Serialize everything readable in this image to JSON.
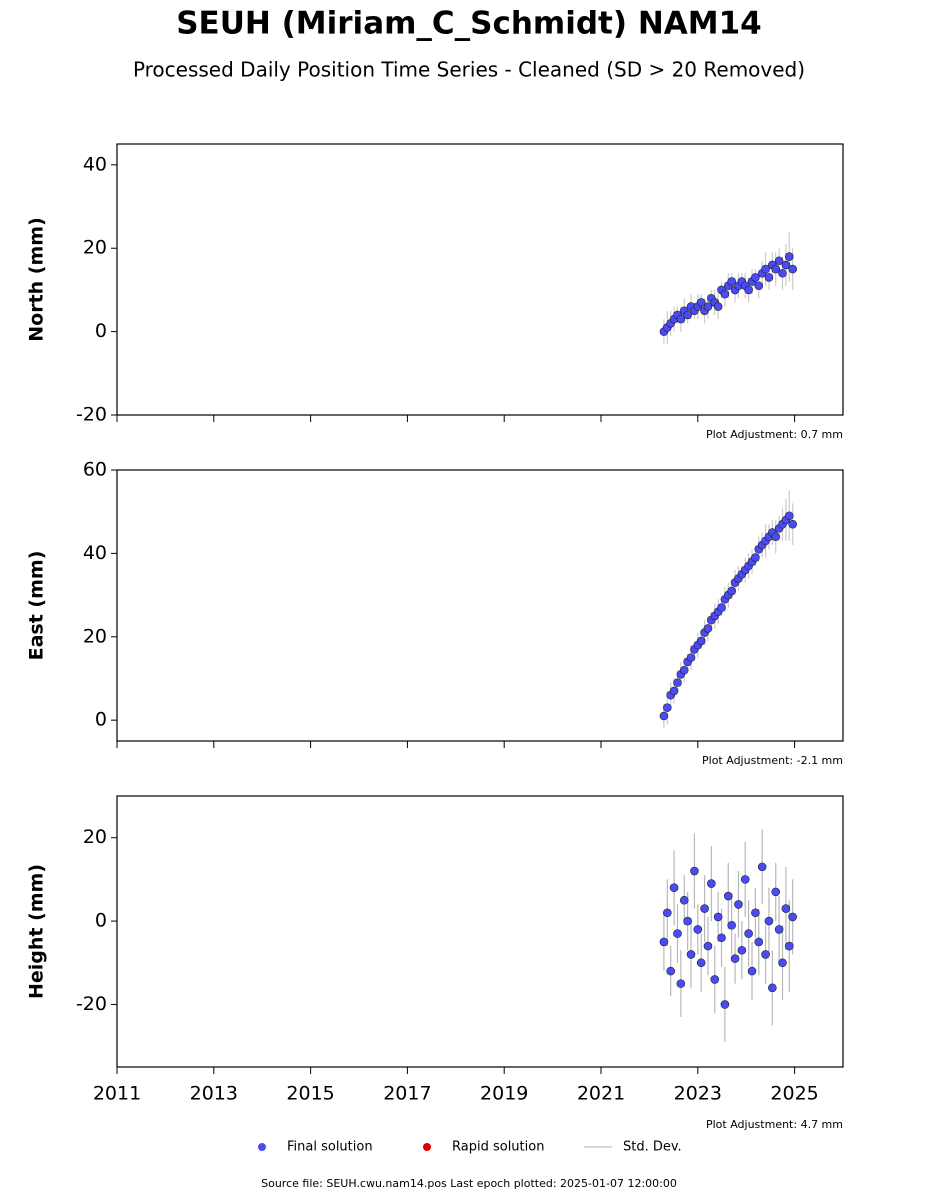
{
  "title": "SEUH (Miriam_C_Schmidt) NAM14",
  "subtitle": "Processed Daily Position Time Series - Cleaned (SD > 20 Removed)",
  "chart_data": [
    {
      "type": "scatter",
      "ylabel": "North (mm)",
      "color": "#4b4bf5",
      "err_color": "#aaaaaa",
      "x": [
        2022.3,
        2022.37,
        2022.44,
        2022.51,
        2022.58,
        2022.65,
        2022.72,
        2022.79,
        2022.86,
        2022.93,
        2023.0,
        2023.07,
        2023.14,
        2023.21,
        2023.28,
        2023.35,
        2023.42,
        2023.49,
        2023.56,
        2023.63,
        2023.7,
        2023.77,
        2023.84,
        2023.91,
        2023.98,
        2024.05,
        2024.12,
        2024.19,
        2024.26,
        2024.33,
        2024.4,
        2024.47,
        2024.54,
        2024.61,
        2024.68,
        2024.75,
        2024.82,
        2024.89,
        2024.96
      ],
      "values": [
        0,
        1,
        2,
        3,
        4,
        3,
        5,
        4,
        6,
        5,
        6,
        7,
        5,
        6,
        8,
        7,
        6,
        10,
        9,
        11,
        12,
        10,
        11,
        12,
        11,
        10,
        12,
        13,
        11,
        14,
        15,
        13,
        16,
        15,
        17,
        14,
        16,
        18,
        15
      ],
      "errors": [
        3,
        4,
        3,
        3,
        2,
        3,
        3,
        2,
        3,
        2,
        3,
        2,
        3,
        3,
        2,
        3,
        3,
        2,
        3,
        3,
        2,
        3,
        3,
        2,
        3,
        3,
        3,
        2,
        3,
        3,
        4,
        3,
        3,
        4,
        3,
        4,
        5,
        6,
        5
      ],
      "xlim": [
        2011,
        2026
      ],
      "xticks": [
        2011,
        2013,
        2015,
        2017,
        2019,
        2021,
        2023,
        2025
      ],
      "ylim": [
        -20,
        45
      ],
      "yticks": [
        -20,
        0,
        20,
        40
      ],
      "xtick_labels": false,
      "note": "Plot Adjustment: 0.7 mm"
    },
    {
      "type": "scatter",
      "ylabel": "East (mm)",
      "color": "#4b4bf5",
      "err_color": "#aaaaaa",
      "x": [
        2022.3,
        2022.37,
        2022.44,
        2022.51,
        2022.58,
        2022.65,
        2022.72,
        2022.79,
        2022.86,
        2022.93,
        2023.0,
        2023.07,
        2023.14,
        2023.21,
        2023.28,
        2023.35,
        2023.42,
        2023.49,
        2023.56,
        2023.63,
        2023.7,
        2023.77,
        2023.84,
        2023.91,
        2023.98,
        2024.05,
        2024.12,
        2024.19,
        2024.26,
        2024.33,
        2024.4,
        2024.47,
        2024.54,
        2024.61,
        2024.68,
        2024.75,
        2024.82,
        2024.89,
        2024.96
      ],
      "values": [
        1,
        3,
        6,
        7,
        9,
        11,
        12,
        14,
        15,
        17,
        18,
        19,
        21,
        22,
        24,
        25,
        26,
        27,
        29,
        30,
        31,
        33,
        34,
        35,
        36,
        37,
        38,
        39,
        41,
        42,
        43,
        44,
        45,
        44,
        46,
        47,
        48,
        49,
        47
      ],
      "errors": [
        3,
        4,
        3,
        3,
        2,
        3,
        3,
        2,
        3,
        2,
        3,
        2,
        3,
        3,
        2,
        3,
        3,
        2,
        3,
        3,
        2,
        3,
        3,
        2,
        3,
        3,
        3,
        2,
        3,
        3,
        4,
        3,
        3,
        4,
        3,
        4,
        5,
        6,
        5
      ],
      "xlim": [
        2011,
        2026
      ],
      "xticks": [
        2011,
        2013,
        2015,
        2017,
        2019,
        2021,
        2023,
        2025
      ],
      "ylim": [
        -5,
        60
      ],
      "yticks": [
        0,
        20,
        40,
        60
      ],
      "xtick_labels": false,
      "note": "Plot Adjustment: -2.1 mm"
    },
    {
      "type": "scatter",
      "ylabel": "Height (mm)",
      "color": "#4b4bf5",
      "err_color": "#888888",
      "x": [
        2022.3,
        2022.37,
        2022.44,
        2022.51,
        2022.58,
        2022.65,
        2022.72,
        2022.79,
        2022.86,
        2022.93,
        2023.0,
        2023.07,
        2023.14,
        2023.21,
        2023.28,
        2023.35,
        2023.42,
        2023.49,
        2023.56,
        2023.63,
        2023.7,
        2023.77,
        2023.84,
        2023.91,
        2023.98,
        2024.05,
        2024.12,
        2024.19,
        2024.26,
        2024.33,
        2024.4,
        2024.47,
        2024.54,
        2024.61,
        2024.68,
        2024.75,
        2024.82,
        2024.89,
        2024.96
      ],
      "values": [
        -5,
        2,
        -12,
        8,
        -3,
        -15,
        5,
        0,
        -8,
        12,
        -2,
        -10,
        3,
        -6,
        9,
        -14,
        1,
        -4,
        -20,
        6,
        -1,
        -9,
        4,
        -7,
        10,
        -3,
        -12,
        2,
        -5,
        13,
        -8,
        0,
        -16,
        7,
        -2,
        -10,
        3,
        -6,
        1
      ],
      "errors": [
        7,
        8,
        6,
        9,
        7,
        8,
        6,
        7,
        8,
        9,
        6,
        7,
        8,
        7,
        9,
        8,
        6,
        7,
        9,
        8,
        7,
        6,
        8,
        7,
        9,
        8,
        7,
        6,
        8,
        9,
        7,
        8,
        9,
        7,
        8,
        9,
        10,
        11,
        9
      ],
      "xlim": [
        2011,
        2026
      ],
      "xticks": [
        2011,
        2013,
        2015,
        2017,
        2019,
        2021,
        2023,
        2025
      ],
      "ylim": [
        -35,
        30
      ],
      "yticks": [
        -20,
        0,
        20
      ],
      "xtick_labels": true,
      "note": "Plot Adjustment: 4.7 mm"
    }
  ],
  "legend": [
    {
      "name": "Final solution",
      "color": "#4b4bf5",
      "kind": "marker"
    },
    {
      "name": "Rapid solution",
      "color": "#dd0000",
      "kind": "marker"
    },
    {
      "name": "Std. Dev.",
      "color": "#cccccc",
      "kind": "line"
    }
  ],
  "footer": "Source file: SEUH.cwu.nam14.pos  Last epoch plotted: 2025-01-07 12:00:00"
}
